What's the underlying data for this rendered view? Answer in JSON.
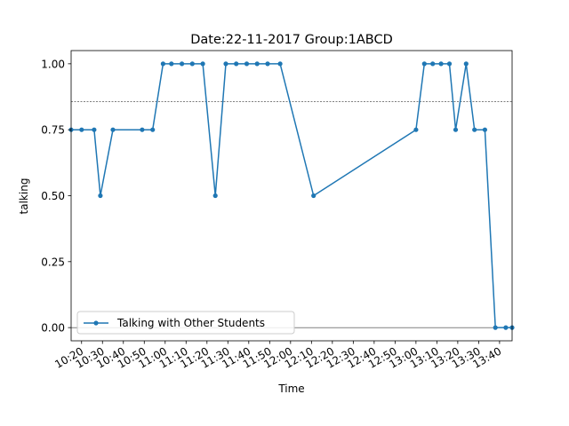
{
  "chart_data": {
    "type": "line",
    "title": "Date:22-11-2017  Group:1ABCD",
    "xlabel": "Time",
    "ylabel": "talking",
    "x_ticks": [
      "10:20",
      "10:30",
      "10:40",
      "10:50",
      "11:00",
      "11:10",
      "11:20",
      "11:30",
      "11:40",
      "11:50",
      "12:00",
      "12:10",
      "12:20",
      "12:30",
      "12:40",
      "12:50",
      "13:00",
      "13:10",
      "13:20",
      "13:30",
      "13:40"
    ],
    "y_ticks": [
      "0.00",
      "0.25",
      "0.50",
      "0.75",
      "1.00"
    ],
    "ylim": [
      -0.05,
      1.05
    ],
    "xlim": [
      "10:15",
      "13:46"
    ],
    "legend": "lower-left",
    "grid": false,
    "series_color": "#1f77b4",
    "threshold": 0.857,
    "baseline": 0,
    "series": [
      {
        "name": "Talking with Other Students",
        "x": [
          "10:15",
          "10:20",
          "10:26",
          "10:29",
          "10:35",
          "10:49",
          "10:54",
          "10:59",
          "11:03",
          "11:08",
          "11:13",
          "11:18",
          "11:24",
          "11:29",
          "11:34",
          "11:39",
          "11:44",
          "11:49",
          "11:55",
          "12:11",
          "13:00",
          "13:04",
          "13:08",
          "13:12",
          "13:16",
          "13:19",
          "13:24",
          "13:28",
          "13:33",
          "13:38",
          "13:43",
          "13:46"
        ],
        "y": [
          0.75,
          0.75,
          0.75,
          0.5,
          0.75,
          0.75,
          0.75,
          1.0,
          1.0,
          1.0,
          1.0,
          1.0,
          0.5,
          1.0,
          1.0,
          1.0,
          1.0,
          1.0,
          1.0,
          0.5,
          0.75,
          1.0,
          1.0,
          1.0,
          1.0,
          0.75,
          1.0,
          0.75,
          0.75,
          0.0,
          0.0,
          0.0
        ]
      }
    ]
  }
}
